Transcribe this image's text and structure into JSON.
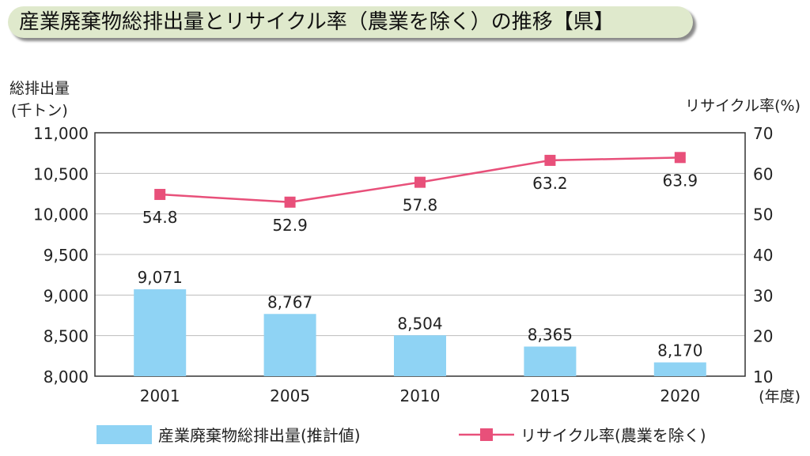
{
  "title": "産業廃棄物総排出量とリサイクル率（農業を除く）の推移【県】",
  "chart_data": {
    "type": "bar+line",
    "categories": [
      "2001",
      "2005",
      "2010",
      "2015",
      "2020"
    ],
    "series": [
      {
        "name": "産業廃棄物総排出量(推計値)",
        "type": "bar",
        "axis": "left",
        "color": "#8fd3f4",
        "values": [
          9071,
          8767,
          8504,
          8365,
          8170
        ],
        "labels": [
          "9,071",
          "8,767",
          "8,504",
          "8,365",
          "8,170"
        ]
      },
      {
        "name": "リサイクル率(農業を除く)",
        "type": "line",
        "axis": "right",
        "color": "#e8507a",
        "values": [
          54.8,
          52.9,
          57.8,
          63.2,
          63.9
        ],
        "labels": [
          "54.8",
          "52.9",
          "57.8",
          "63.2",
          "63.9"
        ]
      }
    ],
    "ylabel_left": [
      "総排出量",
      "(千トン)"
    ],
    "ylabel_right": "リサイクル率(%)",
    "xlabel": "(年度)",
    "ylim_left": [
      8000,
      11000
    ],
    "ylim_right": [
      10,
      70
    ],
    "left_ticks": [
      "8,000",
      "8,500",
      "9,000",
      "9,500",
      "10,000",
      "10,500",
      "11,000"
    ],
    "right_ticks": [
      "10",
      "20",
      "30",
      "40",
      "50",
      "60",
      "70"
    ],
    "grid": true,
    "legend": "bottom"
  }
}
